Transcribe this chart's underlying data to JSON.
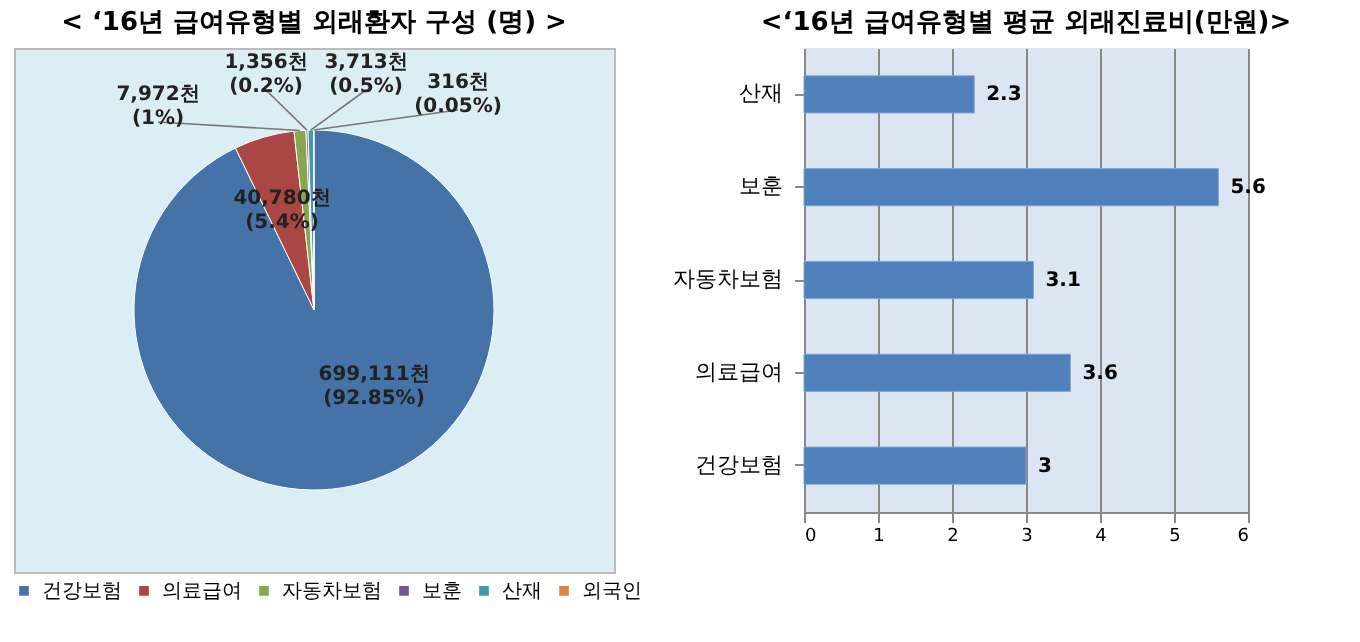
{
  "chart_data": [
    {
      "type": "pie",
      "title": "< ‘16년 급여유형별 외래환자 구성 (명) >",
      "categories": [
        "건강보험",
        "의료급여",
        "자동차보험",
        "보훈",
        "산재",
        "외국인"
      ],
      "values": [
        699111,
        40780,
        7972,
        1356,
        3713,
        316
      ],
      "colors": [
        "#4572a7",
        "#aa4643",
        "#89a54e",
        "#71588f",
        "#4198af",
        "#db843d"
      ],
      "value_labels": [
        "699,111천\n(92.85%)",
        "40,780천\n(5.4%)",
        "7,972천\n(1%)",
        "1,356천\n(0.2%)",
        "3,713천\n(0.5%)",
        "316천\n(0.05%)"
      ],
      "legend": "bottom"
    },
    {
      "type": "bar",
      "orientation": "horizontal",
      "title": "<‘16년 급여유형별 평균 외래진료비(만원)>",
      "categories": [
        "산재",
        "보훈",
        "자동차보험",
        "의료급여",
        "건강보험"
      ],
      "values": [
        2.3,
        5.6,
        3.1,
        3.6,
        3
      ],
      "color": "#4f81bd",
      "xlim": [
        0,
        6
      ],
      "xticks": [
        0,
        1,
        2,
        3,
        4,
        5,
        6
      ],
      "grid": "x",
      "data_labels": true
    }
  ]
}
